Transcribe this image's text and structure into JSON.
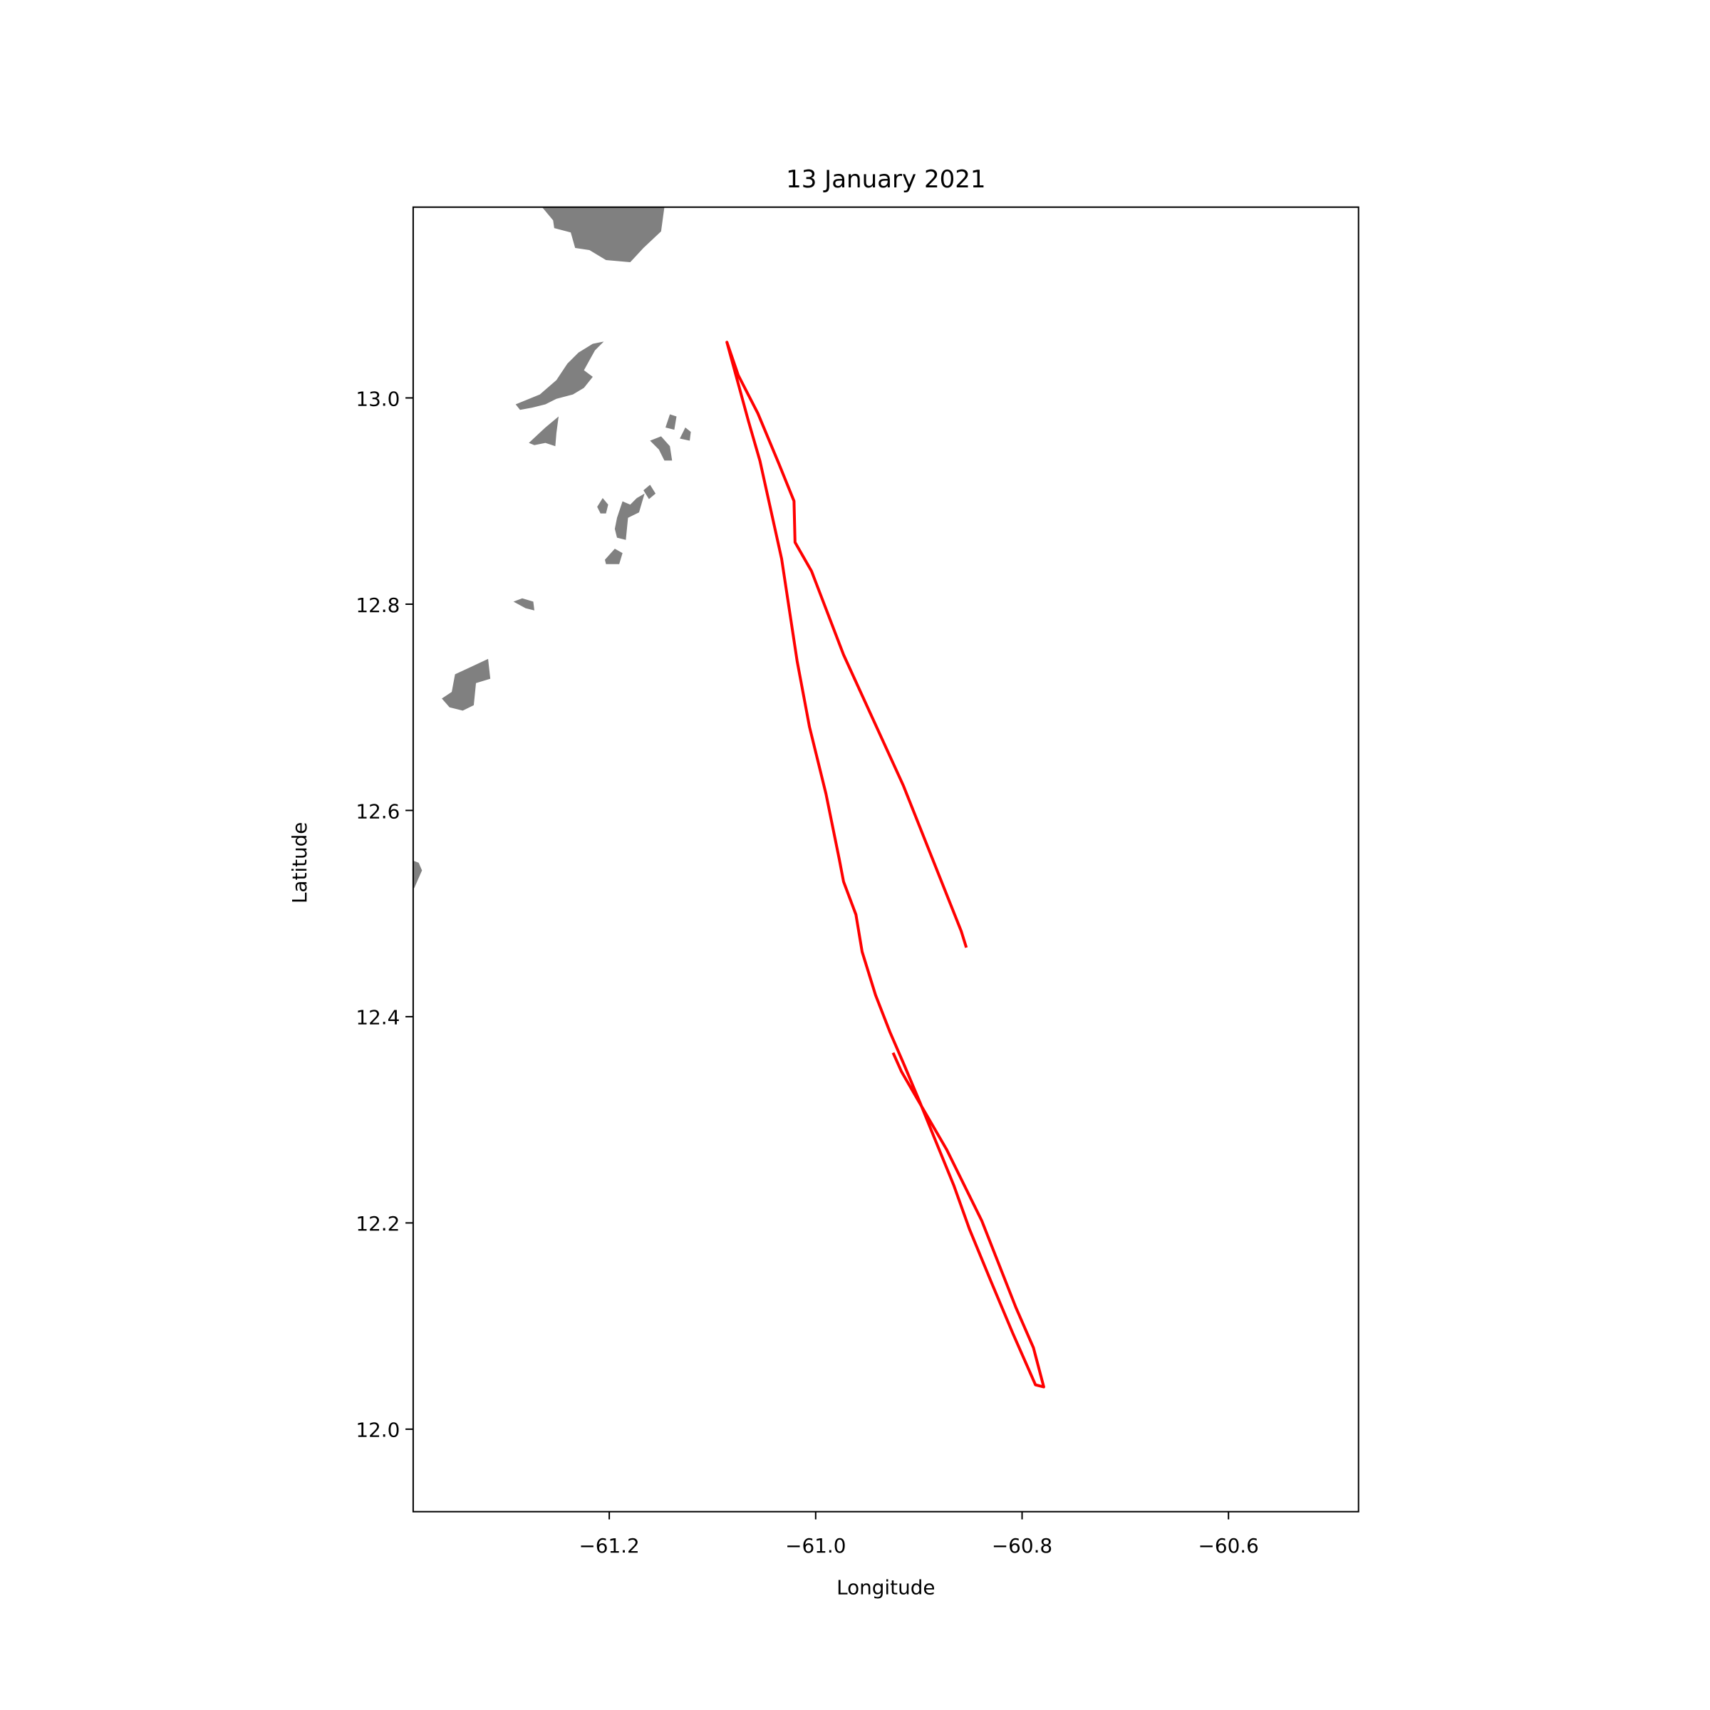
{
  "chart_data": {
    "type": "line",
    "title": "13 January 2021",
    "xlabel": "Longitude",
    "ylabel": "Latitude",
    "color": "#ff0000",
    "xlim": [
      -61.39,
      -60.474
    ],
    "ylim": [
      11.92,
      13.185
    ],
    "xticks": [
      {
        "value": -61.2,
        "label": "−61.2"
      },
      {
        "value": -61.0,
        "label": "−61.0"
      },
      {
        "value": -60.8,
        "label": "−60.8"
      },
      {
        "value": -60.6,
        "label": "−60.6"
      }
    ],
    "yticks": [
      {
        "value": 12.0,
        "label": "12.0"
      },
      {
        "value": 12.2,
        "label": "12.2"
      },
      {
        "value": 12.4,
        "label": "12.4"
      },
      {
        "value": 12.6,
        "label": "12.6"
      },
      {
        "value": 12.8,
        "label": "12.8"
      },
      {
        "value": 13.0,
        "label": "13.0"
      }
    ],
    "x": [
      -60.854,
      -60.859,
      -60.915,
      -60.973,
      -61.004,
      -61.02,
      -61.021,
      -61.036,
      -61.056,
      -61.075,
      -61.086,
      -61.065,
      -61.054,
      -61.033,
      -61.018,
      -61.006,
      -60.99,
      -60.977,
      -60.973,
      -60.961,
      -60.955,
      -60.942,
      -60.928,
      -60.915,
      -60.899,
      -60.886,
      -60.866,
      -60.851,
      -60.83,
      -60.809,
      -60.787,
      -60.779,
      -60.789,
      -60.806,
      -60.839,
      -60.873,
      -60.902,
      -60.917,
      -60.925
    ],
    "values": [
      12.467,
      12.483,
      12.624,
      12.751,
      12.832,
      12.86,
      12.9,
      12.937,
      12.985,
      13.022,
      13.054,
      12.977,
      12.939,
      12.844,
      12.745,
      12.681,
      12.616,
      12.552,
      12.531,
      12.499,
      12.463,
      12.421,
      12.385,
      12.355,
      12.317,
      12.285,
      12.236,
      12.194,
      12.143,
      12.093,
      12.043,
      12.041,
      12.079,
      12.118,
      12.202,
      12.271,
      12.321,
      12.347,
      12.365
    ]
  }
}
